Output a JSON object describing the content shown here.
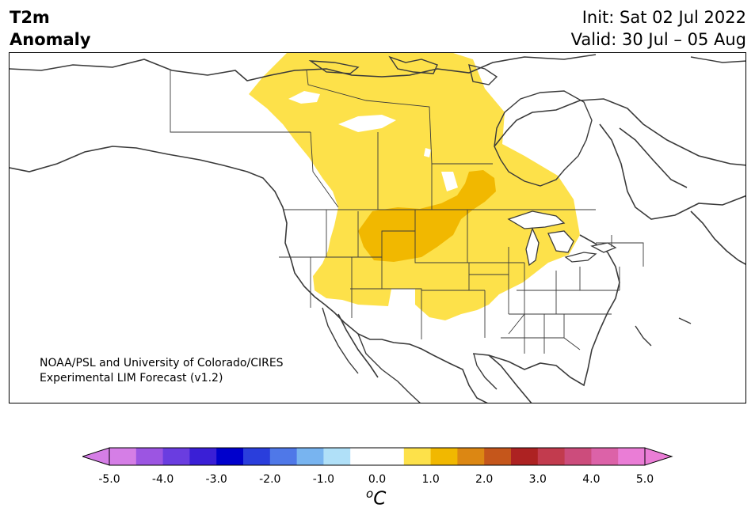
{
  "header": {
    "title_line1": "T2m",
    "title_line2": "Anomaly",
    "init_text": "Init: Sat 02 Jul 2022",
    "valid_text": "Valid: 30 Jul – 05 Aug"
  },
  "map": {
    "region": "North America",
    "credit_line1": "NOAA/PSL and University of Colorado/CIRES",
    "credit_line2": "Experimental LIM Forecast (v1.2)",
    "anomaly_regions": [
      {
        "level": "0.5 to 1.0",
        "color": "#fde14a",
        "area": "western Canada through central US"
      },
      {
        "level": "1.0 to 1.5",
        "color": "#f1b800",
        "area": "Wyoming / South Dakota / Nebraska"
      }
    ]
  },
  "colorbar": {
    "unit_symbol": "o",
    "unit_letter": "C",
    "tick_labels": [
      "-5.0",
      "-4.0",
      "-3.0",
      "-2.0",
      "-1.0",
      "0.0",
      "1.0",
      "2.0",
      "3.0",
      "4.0",
      "5.0"
    ],
    "bins": [
      {
        "color": "#d57ee6"
      },
      {
        "color": "#9c55e2"
      },
      {
        "color": "#6a3de0"
      },
      {
        "color": "#3a1fd6"
      },
      {
        "color": "#0000cc"
      },
      {
        "color": "#2a3edc"
      },
      {
        "color": "#4f78e8"
      },
      {
        "color": "#78b4f0"
      },
      {
        "color": "#b0e0f8"
      },
      {
        "color": "#ffffff"
      },
      {
        "color": "#ffffff"
      },
      {
        "color": "#fde14a"
      },
      {
        "color": "#f1b800"
      },
      {
        "color": "#dc8713"
      },
      {
        "color": "#c5561b"
      },
      {
        "color": "#ad2222"
      },
      {
        "color": "#c23b4e"
      },
      {
        "color": "#cc4c7c"
      },
      {
        "color": "#dc62a8"
      },
      {
        "color": "#ea7dd6"
      }
    ],
    "extend_low_color": "#d57ee6",
    "extend_high_color": "#ea7dd6"
  }
}
